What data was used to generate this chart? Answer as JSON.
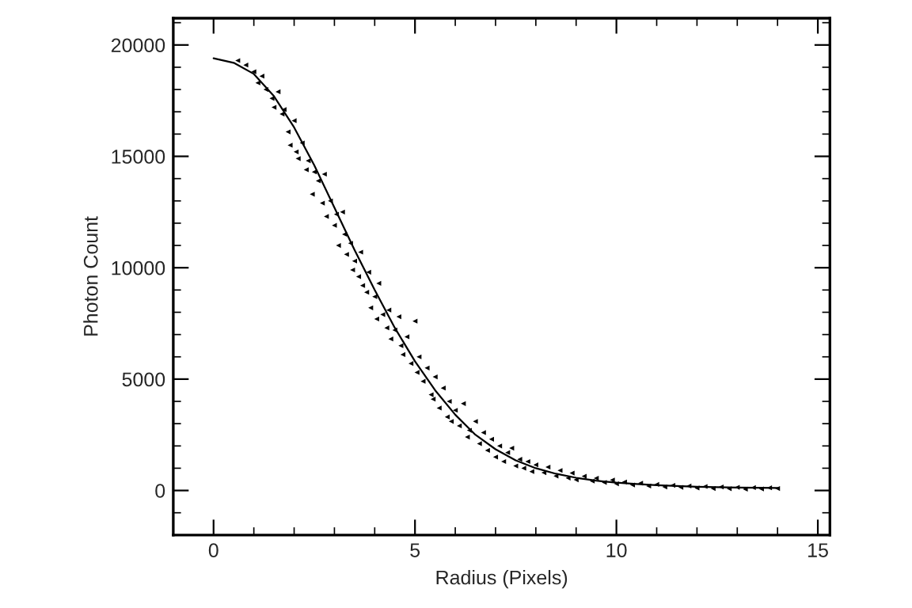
{
  "chart_data": {
    "type": "scatter",
    "xlabel": "Radius (Pixels)",
    "ylabel": "Photon Count",
    "xlim": [
      -1,
      15.3
    ],
    "ylim": [
      -2000,
      21200
    ],
    "xticks": [
      0,
      5,
      10,
      15
    ],
    "yticks": [
      0,
      5000,
      10000,
      15000,
      20000
    ],
    "grid": false,
    "legend": false,
    "series": [
      {
        "color": "#000000",
        "marker": "triangle",
        "x": [
          0.6,
          0.8,
          1.0,
          1.1,
          1.2,
          1.3,
          1.45,
          1.5,
          1.6,
          1.7,
          1.75,
          1.85,
          1.9,
          2.0,
          2.05,
          2.1,
          2.2,
          2.3,
          2.35,
          2.45,
          2.5,
          2.6,
          2.7,
          2.75,
          2.8,
          2.9,
          3.0,
          3.05,
          3.1,
          3.2,
          3.25,
          3.3,
          3.4,
          3.45,
          3.5,
          3.6,
          3.65,
          3.7,
          3.8,
          3.85,
          3.9,
          4.0,
          4.05,
          4.1,
          4.2,
          4.3,
          4.35,
          4.4,
          4.5,
          4.6,
          4.65,
          4.7,
          4.8,
          4.9,
          5.0,
          5.05,
          5.1,
          5.2,
          5.3,
          5.4,
          5.45,
          5.5,
          5.6,
          5.7,
          5.8,
          5.85,
          5.9,
          6.0,
          6.1,
          6.2,
          6.3,
          6.35,
          6.5,
          6.6,
          6.7,
          6.8,
          6.9,
          7.0,
          7.1,
          7.2,
          7.3,
          7.4,
          7.5,
          7.6,
          7.7,
          7.8,
          7.9,
          8.0,
          8.2,
          8.3,
          8.5,
          8.6,
          8.8,
          8.9,
          9.0,
          9.2,
          9.4,
          9.5,
          9.7,
          9.9,
          10.0,
          10.2,
          10.4,
          10.6,
          10.8,
          11.0,
          11.2,
          11.4,
          11.6,
          11.8,
          12.0,
          12.2,
          12.4,
          12.6,
          12.8,
          13.0,
          13.2,
          13.4,
          13.6,
          13.8,
          14.0
        ],
        "values": [
          19300,
          19100,
          18800,
          18300,
          18600,
          18000,
          17600,
          17200,
          17900,
          16900,
          17100,
          16100,
          15500,
          16600,
          15200,
          14900,
          15600,
          14400,
          14800,
          13300,
          14300,
          13900,
          12900,
          14200,
          12300,
          13000,
          11900,
          12400,
          11000,
          12500,
          11500,
          10600,
          11100,
          9900,
          10300,
          9600,
          10700,
          9200,
          8900,
          9800,
          8200,
          8700,
          7700,
          9300,
          7900,
          7300,
          8100,
          6800,
          7200,
          7800,
          6500,
          6100,
          6900,
          5700,
          7600,
          5300,
          6000,
          4900,
          5500,
          4300,
          4100,
          5100,
          3700,
          4600,
          3300,
          4000,
          3100,
          3600,
          2900,
          3900,
          2400,
          2700,
          3100,
          2100,
          2600,
          1800,
          2300,
          1500,
          2000,
          1300,
          1700,
          1900,
          1100,
          1400,
          1000,
          1300,
          850,
          1150,
          800,
          1050,
          650,
          900,
          560,
          780,
          480,
          640,
          420,
          550,
          360,
          470,
          300,
          380,
          250,
          330,
          200,
          270,
          160,
          230,
          140,
          200,
          110,
          180,
          90,
          160,
          80,
          140,
          60,
          130,
          70,
          120,
          90
        ]
      },
      {
        "type": "line",
        "color": "#000000",
        "marker": "none",
        "line_style": "solid",
        "x": [
          0,
          0.5,
          1,
          1.5,
          2,
          2.5,
          3,
          3.5,
          4,
          4.5,
          5,
          5.5,
          6,
          6.5,
          7,
          7.5,
          8,
          8.5,
          9,
          9.5,
          10,
          10.5,
          11,
          11.5,
          12,
          12.5,
          13,
          13.5,
          14
        ],
        "values": [
          19400,
          19200,
          18700,
          17700,
          16300,
          14600,
          12700,
          10800,
          9000,
          7300,
          5800,
          4500,
          3400,
          2500,
          1850,
          1350,
          1000,
          750,
          570,
          440,
          350,
          290,
          240,
          200,
          170,
          150,
          130,
          120,
          110
        ]
      }
    ]
  }
}
